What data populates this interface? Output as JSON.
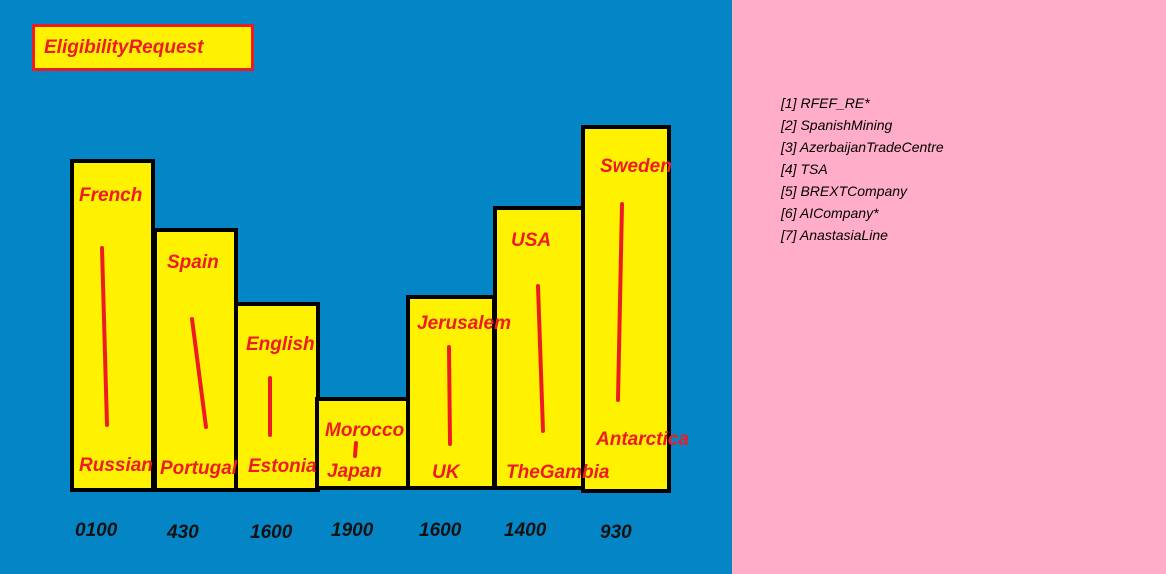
{
  "title": "EligibilityRequest",
  "colors": {
    "left_background": "#0486c6",
    "right_background": "#ffadc8",
    "bar_fill": "#fff200",
    "bar_border": "#000000",
    "label_text": "#ed1c24",
    "value_text": "#111111"
  },
  "bars": [
    {
      "top_label": "French",
      "bottom_label": "Russian",
      "value": "0100"
    },
    {
      "top_label": "Spain",
      "bottom_label": "Portugal",
      "value": "430"
    },
    {
      "top_label": "English",
      "bottom_label": "Estonia",
      "value": "1600"
    },
    {
      "top_label": "Morocco",
      "bottom_label": "Japan",
      "value": "1900"
    },
    {
      "top_label": "Jerusalem",
      "bottom_label": "UK",
      "value": "1600"
    },
    {
      "top_label": "USA",
      "bottom_label": "TheGambia",
      "value": "1400"
    },
    {
      "top_label": "Sweden",
      "bottom_label": "Antarctica",
      "value": "930"
    }
  ],
  "legend": [
    "[1] RFEF_RE*",
    "[2] SpanishMining",
    "[3] AzerbaijanTradeCentre",
    "[4] TSA",
    "[5] BREXTCompany",
    "[6] AICompany*",
    "[7] AnastasiaLine"
  ]
}
